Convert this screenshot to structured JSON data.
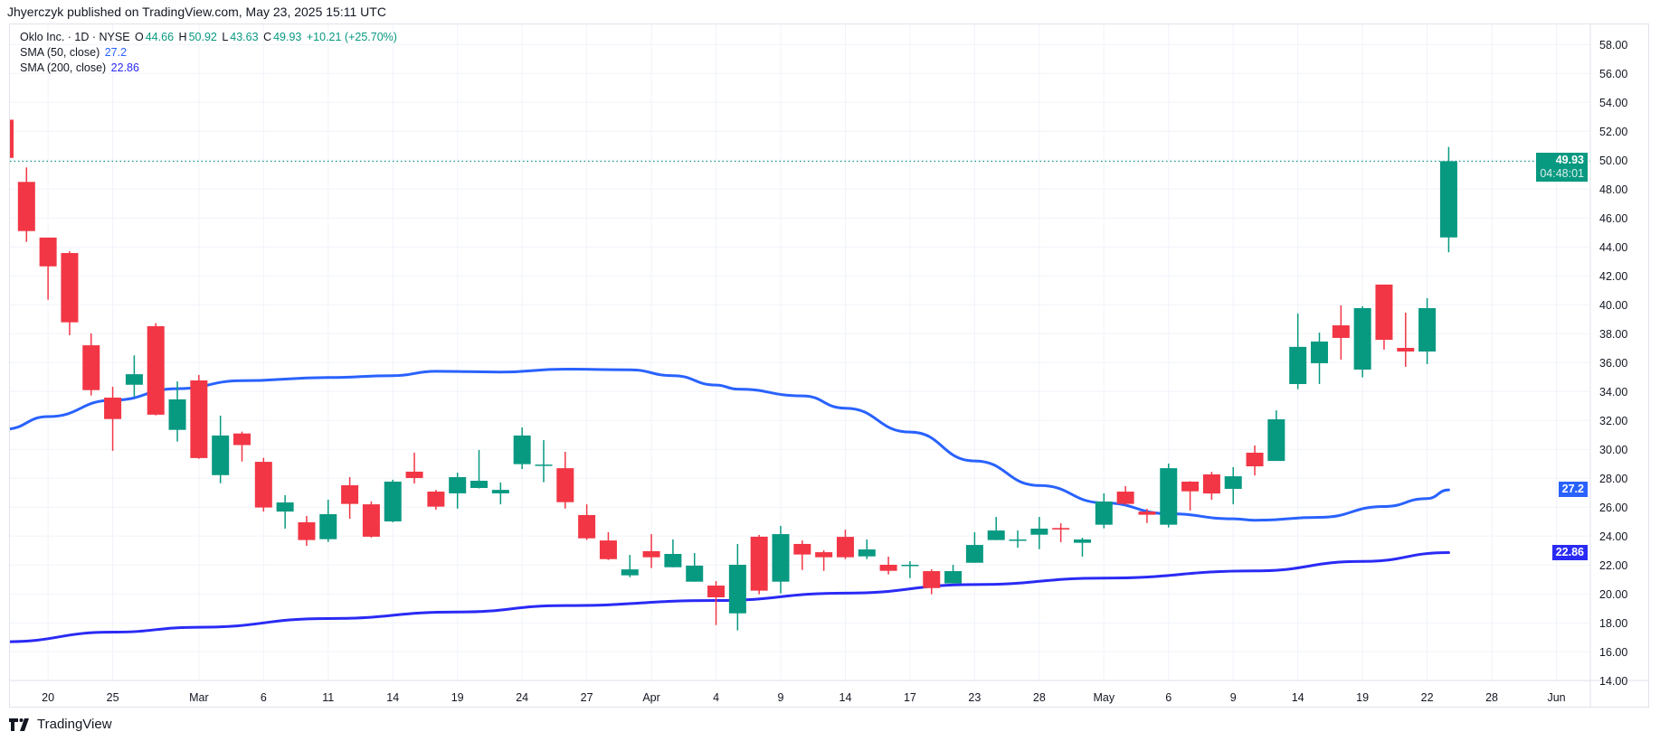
{
  "publisher_line": "Jhyerczyk published on TradingView.com, May 23, 2025 15:11 UTC",
  "legend": {
    "symbol": "Oklo Inc. · 1D · NYSE",
    "o_label": "O",
    "o": "44.66",
    "h_label": "H",
    "h": "50.92",
    "l_label": "L",
    "l": "43.63",
    "c_label": "C",
    "c": "49.93",
    "change": "+10.21 (+25.70%)",
    "sma50_label": "SMA (50, close)",
    "sma50_value": "27.2",
    "sma200_label": "SMA (200, close)",
    "sma200_value": "22.86"
  },
  "badges": {
    "last_price": "49.93",
    "countdown": "04:48:01",
    "sma50": "27.2",
    "sma200": "22.86"
  },
  "logo_text": "TradingView",
  "colors": {
    "up": "#089981",
    "down": "#F23645",
    "sma50": "#2962FF",
    "sma200": "#2A2AF5",
    "grid": "#F0F3FA"
  },
  "chart_data": {
    "type": "candlestick",
    "title": "Oklo Inc. · 1D · NYSE",
    "ylim": [
      14.0,
      59.46
    ],
    "grid": true,
    "yticks": [
      "14.00",
      "16.00",
      "18.00",
      "20.00",
      "22.00",
      "24.00",
      "26.00",
      "28.00",
      "30.00",
      "32.00",
      "34.00",
      "36.00",
      "38.00",
      "40.00",
      "42.00",
      "44.00",
      "46.00",
      "48.00",
      "50.00",
      "52.00",
      "54.00",
      "56.00",
      "58.00"
    ],
    "xticks": [
      {
        "label": "20",
        "date": "2025-02-20"
      },
      {
        "label": "25",
        "date": "2025-02-25"
      },
      {
        "label": "Mar",
        "date": "2025-03-03"
      },
      {
        "label": "6",
        "date": "2025-03-06"
      },
      {
        "label": "11",
        "date": "2025-03-11"
      },
      {
        "label": "14",
        "date": "2025-03-14"
      },
      {
        "label": "19",
        "date": "2025-03-19"
      },
      {
        "label": "24",
        "date": "2025-03-24"
      },
      {
        "label": "27",
        "date": "2025-03-27"
      },
      {
        "label": "Apr",
        "date": "2025-04-01"
      },
      {
        "label": "4",
        "date": "2025-04-04"
      },
      {
        "label": "9",
        "date": "2025-04-09"
      },
      {
        "label": "14",
        "date": "2025-04-14"
      },
      {
        "label": "17",
        "date": "2025-04-17"
      },
      {
        "label": "23",
        "date": "2025-04-23"
      },
      {
        "label": "28",
        "date": "2025-04-28"
      },
      {
        "label": "May",
        "date": "2025-05-01"
      },
      {
        "label": "6",
        "date": "2025-05-06"
      },
      {
        "label": "9",
        "date": "2025-05-09"
      },
      {
        "label": "14",
        "date": "2025-05-14"
      },
      {
        "label": "19",
        "date": "2025-05-19"
      },
      {
        "label": "22",
        "date": "2025-05-22"
      },
      {
        "label": "28",
        "date": "2025-05-28"
      },
      {
        "label": "Jun",
        "date": "2025-06-02"
      }
    ],
    "future_sessions": [
      "2025-05-27",
      "2025-05-28",
      "2025-05-29",
      "2025-05-30",
      "2025-06-02"
    ],
    "candles": [
      [
        "2025-02-18",
        52.8,
        52.8,
        50.16,
        50.16
      ],
      [
        "2025-02-19",
        48.5,
        49.5,
        44.35,
        45.1
      ],
      [
        "2025-02-20",
        44.65,
        44.65,
        40.35,
        42.66
      ],
      [
        "2025-02-21",
        43.58,
        43.7,
        37.9,
        38.79
      ],
      [
        "2025-02-24",
        37.2,
        38.02,
        33.73,
        34.1
      ],
      [
        "2025-02-25",
        33.58,
        34.33,
        29.9,
        32.1
      ],
      [
        "2025-02-26",
        34.47,
        36.5,
        33.6,
        35.2
      ],
      [
        "2025-02-27",
        38.52,
        38.73,
        32.35,
        32.4
      ],
      [
        "2025-02-28",
        31.35,
        34.7,
        30.54,
        33.46
      ],
      [
        "2025-03-03",
        34.77,
        35.15,
        29.35,
        29.4
      ],
      [
        "2025-03-04",
        28.22,
        32.33,
        27.66,
        30.96
      ],
      [
        "2025-03-05",
        31.1,
        31.23,
        29.16,
        30.3
      ],
      [
        "2025-03-06",
        29.14,
        29.42,
        25.7,
        25.98
      ],
      [
        "2025-03-07",
        25.7,
        26.83,
        24.52,
        26.33
      ],
      [
        "2025-03-10",
        24.96,
        25.39,
        23.33,
        23.73
      ],
      [
        "2025-03-11",
        23.79,
        26.52,
        23.6,
        25.52
      ],
      [
        "2025-03-12",
        27.52,
        28.08,
        25.2,
        26.23
      ],
      [
        "2025-03-13",
        26.2,
        26.4,
        23.9,
        23.96
      ],
      [
        "2025-03-14",
        25.02,
        27.9,
        24.96,
        27.77
      ],
      [
        "2025-03-17",
        28.46,
        29.77,
        27.64,
        28.02
      ],
      [
        "2025-03-18",
        27.08,
        27.2,
        25.83,
        26.04
      ],
      [
        "2025-03-19",
        26.96,
        28.39,
        25.9,
        28.08
      ],
      [
        "2025-03-20",
        27.33,
        29.96,
        27.3,
        27.83
      ],
      [
        "2025-03-21",
        26.96,
        27.71,
        26.2,
        27.2
      ],
      [
        "2025-03-24",
        28.98,
        31.52,
        28.64,
        30.96
      ],
      [
        "2025-03-25",
        28.9,
        30.64,
        27.73,
        28.95
      ],
      [
        "2025-03-26",
        28.7,
        29.83,
        25.91,
        26.35
      ],
      [
        "2025-03-27",
        25.46,
        26.2,
        23.73,
        23.85
      ],
      [
        "2025-03-28",
        23.7,
        24.27,
        22.35,
        22.41
      ],
      [
        "2025-03-31",
        21.29,
        22.7,
        21.16,
        21.7
      ],
      [
        "2025-04-01",
        22.96,
        24.14,
        21.79,
        22.54
      ],
      [
        "2025-04-02",
        21.85,
        23.77,
        21.85,
        22.77
      ],
      [
        "2025-04-03",
        20.85,
        22.83,
        20.85,
        21.96
      ],
      [
        "2025-04-04",
        20.58,
        20.89,
        17.85,
        19.77
      ],
      [
        "2025-04-07",
        18.66,
        23.46,
        17.48,
        22.02
      ],
      [
        "2025-04-08",
        23.96,
        24.08,
        19.98,
        20.23
      ],
      [
        "2025-04-09",
        20.85,
        24.71,
        20.04,
        24.14
      ],
      [
        "2025-04-10",
        23.46,
        23.7,
        21.66,
        22.73
      ],
      [
        "2025-04-11",
        22.89,
        23.02,
        21.6,
        22.54
      ],
      [
        "2025-04-14",
        23.95,
        24.45,
        22.41,
        22.54
      ],
      [
        "2025-04-15",
        22.6,
        23.77,
        22.41,
        23.08
      ],
      [
        "2025-04-16",
        22.02,
        22.58,
        21.35,
        21.6
      ],
      [
        "2025-04-17",
        21.98,
        22.27,
        21.1,
        22.02
      ],
      [
        "2025-04-21",
        21.58,
        21.7,
        19.98,
        20.41
      ],
      [
        "2025-04-22",
        20.73,
        22.02,
        20.73,
        21.58
      ],
      [
        "2025-04-23",
        22.16,
        24.27,
        22.16,
        23.39
      ],
      [
        "2025-04-24",
        23.73,
        25.33,
        23.73,
        24.39
      ],
      [
        "2025-04-25",
        23.73,
        24.39,
        23.2,
        23.77
      ],
      [
        "2025-04-28",
        24.1,
        25.33,
        23.1,
        24.52
      ],
      [
        "2025-04-29",
        24.56,
        24.89,
        23.58,
        24.46
      ],
      [
        "2025-04-30",
        23.54,
        23.89,
        22.58,
        23.77
      ],
      [
        "2025-05-01",
        24.79,
        26.96,
        24.54,
        26.39
      ],
      [
        "2025-05-02",
        27.08,
        27.46,
        26.16,
        26.23
      ],
      [
        "2025-05-05",
        25.7,
        25.89,
        24.91,
        25.48
      ],
      [
        "2025-05-06",
        24.79,
        29.02,
        24.6,
        28.7
      ],
      [
        "2025-05-07",
        27.77,
        27.8,
        25.77,
        27.1
      ],
      [
        "2025-05-08",
        28.27,
        28.45,
        26.52,
        26.95
      ],
      [
        "2025-05-09",
        27.27,
        28.77,
        26.2,
        28.14
      ],
      [
        "2025-05-12",
        29.77,
        30.27,
        28.2,
        28.83
      ],
      [
        "2025-05-13",
        29.2,
        32.7,
        29.2,
        32.08
      ],
      [
        "2025-05-14",
        34.52,
        39.4,
        34.17,
        37.09
      ],
      [
        "2025-05-15",
        35.96,
        38.08,
        34.52,
        37.46
      ],
      [
        "2025-05-16",
        38.58,
        39.96,
        36.21,
        37.71
      ],
      [
        "2025-05-19",
        35.52,
        39.9,
        34.98,
        39.77
      ],
      [
        "2025-05-20",
        41.4,
        41.4,
        36.9,
        37.58
      ],
      [
        "2025-05-21",
        37.02,
        39.46,
        35.71,
        36.77
      ],
      [
        "2025-05-22",
        36.77,
        40.46,
        35.9,
        39.77
      ],
      [
        "2025-05-23",
        44.66,
        50.92,
        43.63,
        49.93
      ]
    ],
    "last_price": 49.93,
    "series": [
      {
        "name": "SMA (50, close)",
        "points": [
          [
            "2025-02-18",
            31.4
          ],
          [
            "2025-02-20",
            32.27
          ],
          [
            "2025-02-25",
            33.4
          ],
          [
            "2025-02-28",
            34.2
          ],
          [
            "2025-03-05",
            34.75
          ],
          [
            "2025-03-11",
            34.97
          ],
          [
            "2025-03-14",
            35.1
          ],
          [
            "2025-03-18",
            35.4
          ],
          [
            "2025-03-21",
            35.35
          ],
          [
            "2025-03-26",
            35.55
          ],
          [
            "2025-03-31",
            35.5
          ],
          [
            "2025-04-02",
            35.1
          ],
          [
            "2025-04-04",
            34.45
          ],
          [
            "2025-04-07",
            34.17
          ],
          [
            "2025-04-10",
            33.7
          ],
          [
            "2025-04-14",
            32.85
          ],
          [
            "2025-04-17",
            31.2
          ],
          [
            "2025-04-23",
            29.2
          ],
          [
            "2025-04-28",
            27.5
          ],
          [
            "2025-05-01",
            26.3
          ],
          [
            "2025-05-06",
            25.55
          ],
          [
            "2025-05-09",
            25.2
          ],
          [
            "2025-05-12",
            25.1
          ],
          [
            "2025-05-15",
            25.3
          ],
          [
            "2025-05-20",
            26.05
          ],
          [
            "2025-05-22",
            26.6
          ],
          [
            "2025-05-23",
            27.2
          ]
        ]
      },
      {
        "name": "SMA (200, close)",
        "points": [
          [
            "2025-02-18",
            16.7
          ],
          [
            "2025-02-25",
            17.36
          ],
          [
            "2025-03-03",
            17.7
          ],
          [
            "2025-03-11",
            18.3
          ],
          [
            "2025-03-19",
            18.75
          ],
          [
            "2025-03-26",
            19.2
          ],
          [
            "2025-04-04",
            19.55
          ],
          [
            "2025-04-14",
            20.06
          ],
          [
            "2025-04-23",
            20.65
          ],
          [
            "2025-05-01",
            21.1
          ],
          [
            "2025-05-12",
            21.6
          ],
          [
            "2025-05-19",
            22.25
          ],
          [
            "2025-05-23",
            22.86
          ]
        ]
      }
    ]
  }
}
